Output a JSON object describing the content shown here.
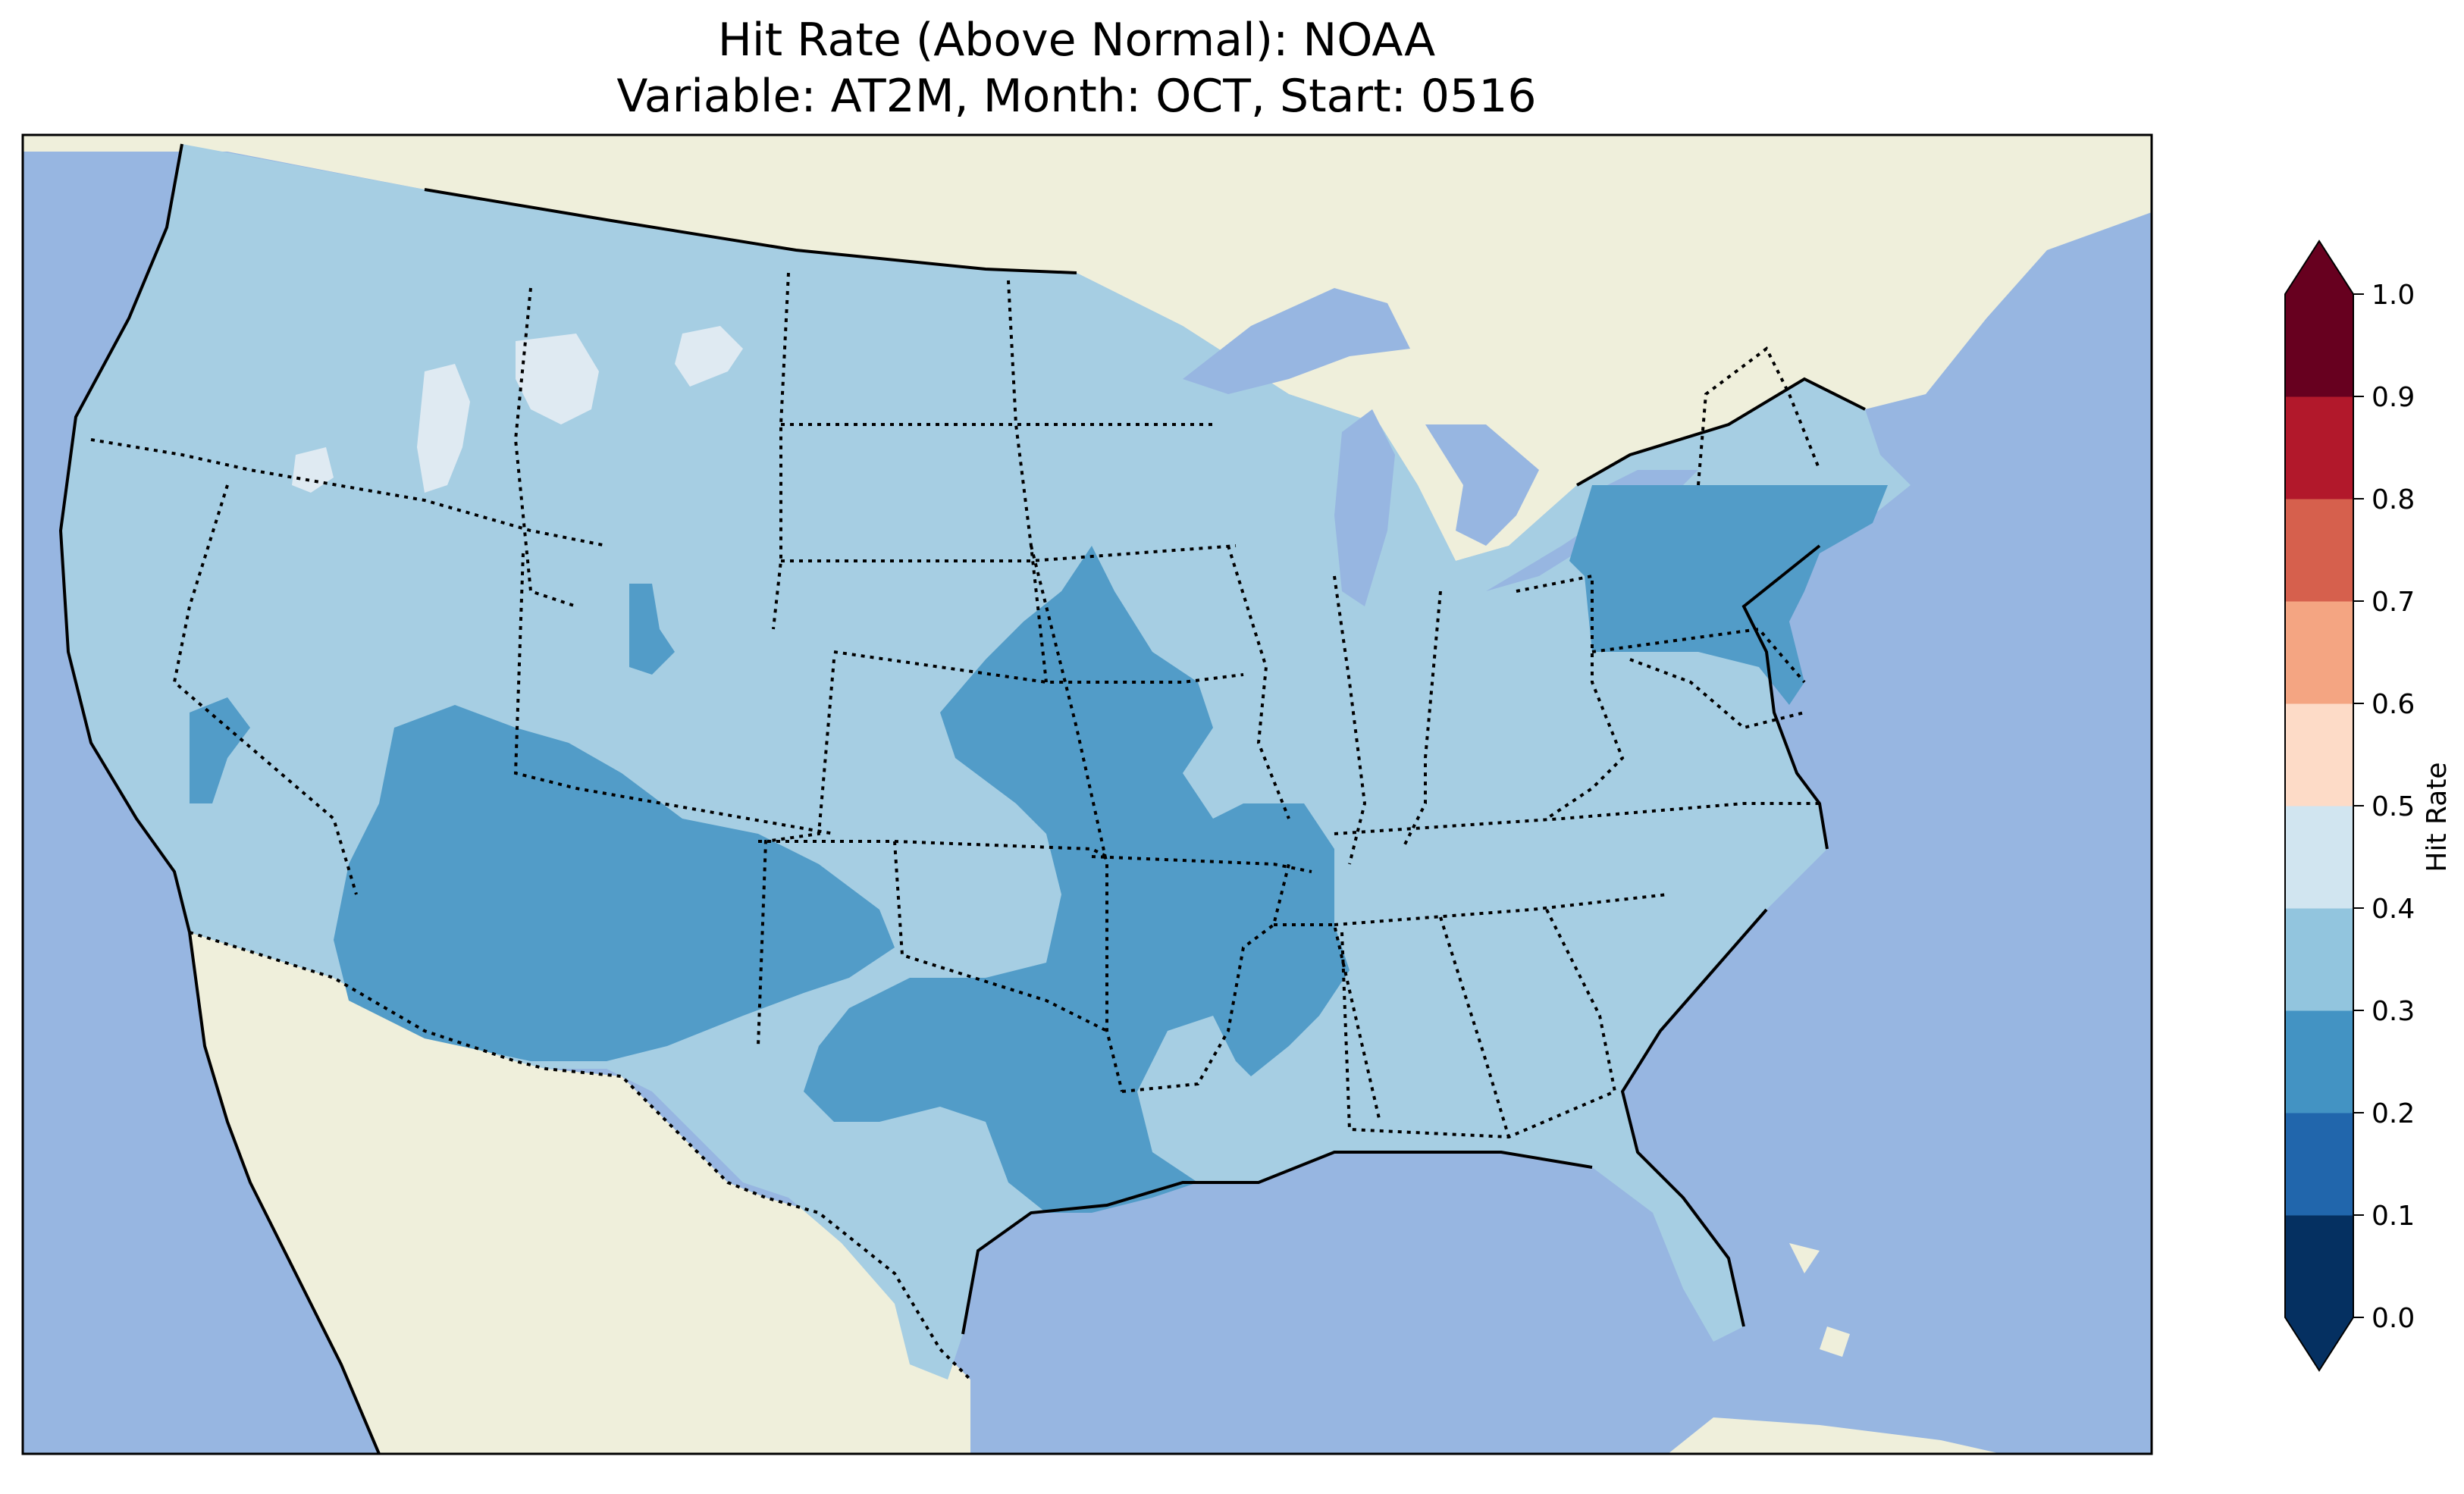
{
  "title_line1": "Hit Rate (Above Normal): NOAA",
  "title_line2": "Variable: AT2M, Month: OCT, Start: 0516",
  "map": {
    "colors": {
      "ocean": "#97b6e1",
      "land": "#efefdb",
      "lakes": "#97b6e1",
      "band_0_3_0_4": "#a6cee3",
      "band_0_2_0_3": "#529cc8",
      "band_0_4_0_5": "#dfeaf2"
    }
  },
  "colorbar": {
    "label": "Hit Rate",
    "ticks": [
      "0.0",
      "0.1",
      "0.2",
      "0.3",
      "0.4",
      "0.5",
      "0.6",
      "0.7",
      "0.8",
      "0.9",
      "1.0"
    ],
    "bands": [
      {
        "range": [
          0.0,
          0.1
        ],
        "color": "#053061"
      },
      {
        "range": [
          0.1,
          0.2
        ],
        "color": "#2166ac"
      },
      {
        "range": [
          0.2,
          0.3
        ],
        "color": "#4393c3"
      },
      {
        "range": [
          0.3,
          0.4
        ],
        "color": "#92c5de"
      },
      {
        "range": [
          0.4,
          0.5
        ],
        "color": "#d1e5f0"
      },
      {
        "range": [
          0.5,
          0.6
        ],
        "color": "#fddbc7"
      },
      {
        "range": [
          0.6,
          0.7
        ],
        "color": "#f4a582"
      },
      {
        "range": [
          0.7,
          0.8
        ],
        "color": "#d6604d"
      },
      {
        "range": [
          0.8,
          0.9
        ],
        "color": "#b2182b"
      },
      {
        "range": [
          0.9,
          1.0
        ],
        "color": "#67001f"
      }
    ],
    "extend_under_color": "#053061",
    "extend_over_color": "#67001f"
  }
}
